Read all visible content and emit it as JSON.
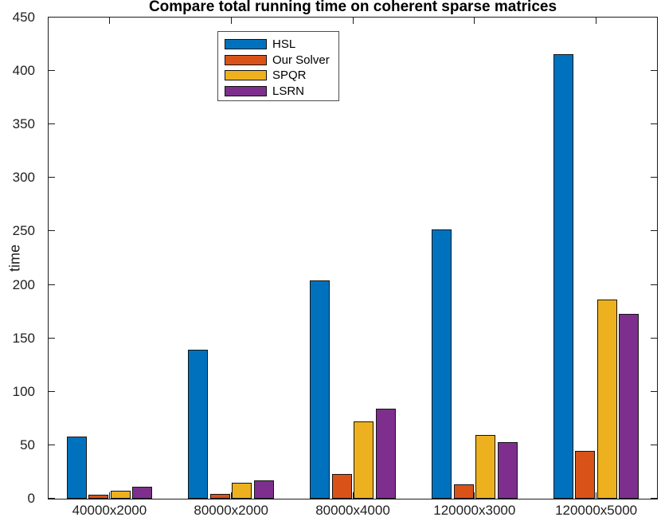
{
  "chart_data": {
    "type": "bar",
    "title": "Compare total running time on coherent sparse matrices",
    "xlabel": "",
    "ylabel": "time",
    "ylim": [
      0,
      450
    ],
    "yticks": [
      0,
      50,
      100,
      150,
      200,
      250,
      300,
      350,
      400,
      450
    ],
    "grid": false,
    "legend_position": "top-left-inside",
    "categories": [
      "40000x2000",
      "80000x2000",
      "80000x4000",
      "120000x3000",
      "120000x5000"
    ],
    "series": [
      {
        "name": "HSL",
        "color": "#0072BD",
        "values": [
          58,
          139,
          204,
          252,
          416
        ]
      },
      {
        "name": "Our Solver",
        "color": "#D95319",
        "values": [
          3.5,
          4.5,
          23,
          13.5,
          45
        ]
      },
      {
        "name": "SPQR",
        "color": "#EDB120",
        "values": [
          7.5,
          15,
          72,
          59.5,
          186
        ]
      },
      {
        "name": "LSRN",
        "color": "#7E2F8E",
        "values": [
          11,
          17,
          84,
          53,
          173
        ]
      }
    ],
    "axis_color": "#1c1c1c"
  }
}
